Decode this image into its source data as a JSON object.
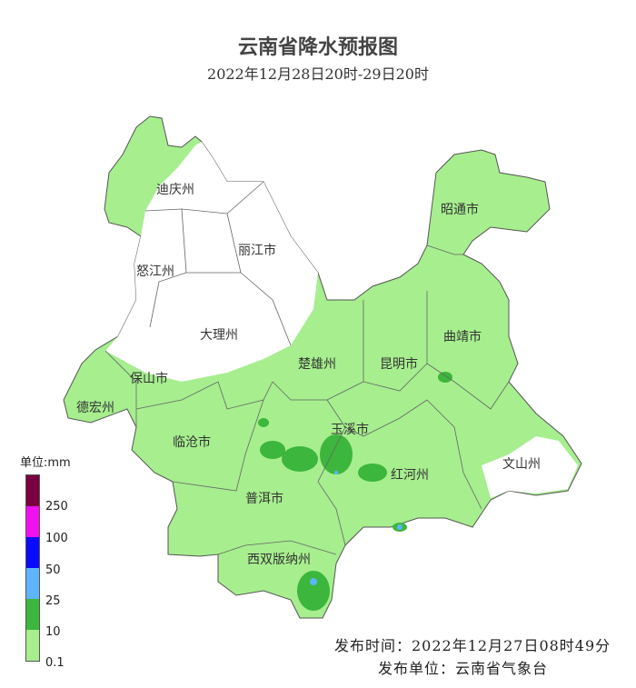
{
  "title": "云南省降水预报图",
  "subtitle": "2022年12月28日20时-29日20时",
  "regions": [
    "迪庆州",
    "丽江市",
    "怒江州",
    "大理州",
    "保山市",
    "德宏州",
    "临沧市",
    "楚雄州",
    "昆明市",
    "曲靖市",
    "昭通市",
    "玉溪市",
    "红河州",
    "文山州",
    "普洱市",
    "西双版纳州"
  ],
  "legend": {
    "unit": "单位:mm",
    "levels": [
      {
        "label": "250",
        "color": "#7a0040"
      },
      {
        "label": "100",
        "color": "#ee10ee"
      },
      {
        "label": "50",
        "color": "#0a0aff"
      },
      {
        "label": "25",
        "color": "#5fb4ff"
      },
      {
        "label": "10",
        "color": "#3cb63c"
      },
      {
        "label": "0.1",
        "color": "#a6ee8e"
      }
    ]
  },
  "footer": {
    "issue_time": "发布时间：2022年12月27日08时49分",
    "issuer": "发布单位：云南省气象台"
  }
}
